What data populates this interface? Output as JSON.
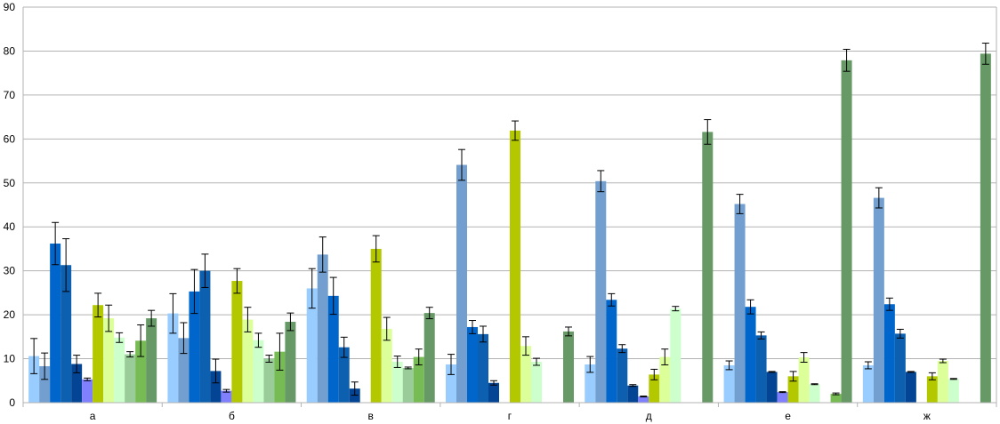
{
  "chart_data": {
    "type": "bar",
    "title": "",
    "xlabel": "",
    "ylabel": "",
    "ylim": [
      0,
      90
    ],
    "yticks": [
      0,
      10,
      20,
      30,
      40,
      50,
      60,
      70,
      80,
      90
    ],
    "grid": true,
    "legend": "none",
    "error_bars": true,
    "categories": [
      "а",
      "б",
      "в",
      "г",
      "д",
      "е",
      "ж"
    ],
    "series": [
      {
        "color": "#99ccff",
        "values": [
          10.6,
          20.3,
          26.0,
          8.7,
          8.7,
          8.5,
          8.5
        ],
        "errors": [
          4.0,
          4.5,
          4.5,
          2.3,
          1.8,
          1.0,
          0.8
        ]
      },
      {
        "color": "#729fcf",
        "values": [
          8.3,
          14.7,
          33.7,
          54.1,
          50.4,
          45.2,
          46.6
        ],
        "errors": [
          3.0,
          3.5,
          4.0,
          3.5,
          2.4,
          2.2,
          2.3
        ]
      },
      {
        "color": "#0066cc",
        "values": [
          36.2,
          25.3,
          24.3,
          17.2,
          23.4,
          21.8,
          22.4
        ],
        "errors": [
          4.8,
          5.0,
          4.2,
          1.5,
          1.4,
          1.6,
          1.4
        ]
      },
      {
        "color": "#0d5fb0",
        "values": [
          31.3,
          30.0,
          12.6,
          15.6,
          12.3,
          15.3,
          15.7
        ],
        "errors": [
          6.0,
          3.8,
          2.3,
          1.8,
          0.9,
          0.8,
          1.0
        ]
      },
      {
        "color": "#034594",
        "values": [
          8.8,
          7.2,
          3.2,
          4.5,
          3.9,
          7.0,
          7.0
        ],
        "errors": [
          2.0,
          2.7,
          1.5,
          0.5,
          0.2,
          0.1,
          0.1
        ]
      },
      {
        "color": "#8080ff",
        "values": [
          5.3,
          2.7,
          0.1,
          0.1,
          1.4,
          2.4,
          0.1
        ],
        "errors": [
          0.3,
          0.3,
          0.0,
          0.0,
          0.1,
          0.1,
          0.0
        ]
      },
      {
        "color": "#b4c800",
        "values": [
          22.2,
          27.7,
          35.0,
          61.9,
          6.4,
          6.0,
          6.0
        ],
        "errors": [
          2.7,
          2.8,
          3.0,
          2.2,
          1.2,
          1.1,
          0.8
        ]
      },
      {
        "color": "#ddff99",
        "values": [
          19.2,
          18.9,
          16.8,
          12.9,
          10.4,
          10.3,
          9.5
        ],
        "errors": [
          3.0,
          2.8,
          2.6,
          2.1,
          1.8,
          1.1,
          0.4
        ]
      },
      {
        "color": "#ccffcc",
        "values": [
          14.8,
          14.2,
          9.3,
          9.3,
          21.4,
          4.2,
          5.4
        ],
        "errors": [
          1.1,
          1.6,
          1.3,
          0.8,
          0.5,
          0.1,
          0.1
        ]
      },
      {
        "color": "#99cc99",
        "values": [
          11.0,
          10.0,
          7.9,
          0.1,
          0.1,
          0.1,
          0.1
        ],
        "errors": [
          0.6,
          0.8,
          0.2,
          0.0,
          0.0,
          0.0,
          0.0
        ]
      },
      {
        "color": "#77bb55",
        "values": [
          14.1,
          11.6,
          10.4,
          0.1,
          0.1,
          2.0,
          0.1
        ],
        "errors": [
          3.6,
          4.2,
          1.8,
          0.0,
          0.0,
          0.2,
          0.0
        ]
      },
      {
        "color": "#669966",
        "values": [
          19.2,
          18.4,
          20.4,
          16.2,
          61.6,
          77.9,
          79.4
        ],
        "errors": [
          1.8,
          2.0,
          1.3,
          1.0,
          2.8,
          2.5,
          2.4
        ]
      }
    ]
  }
}
